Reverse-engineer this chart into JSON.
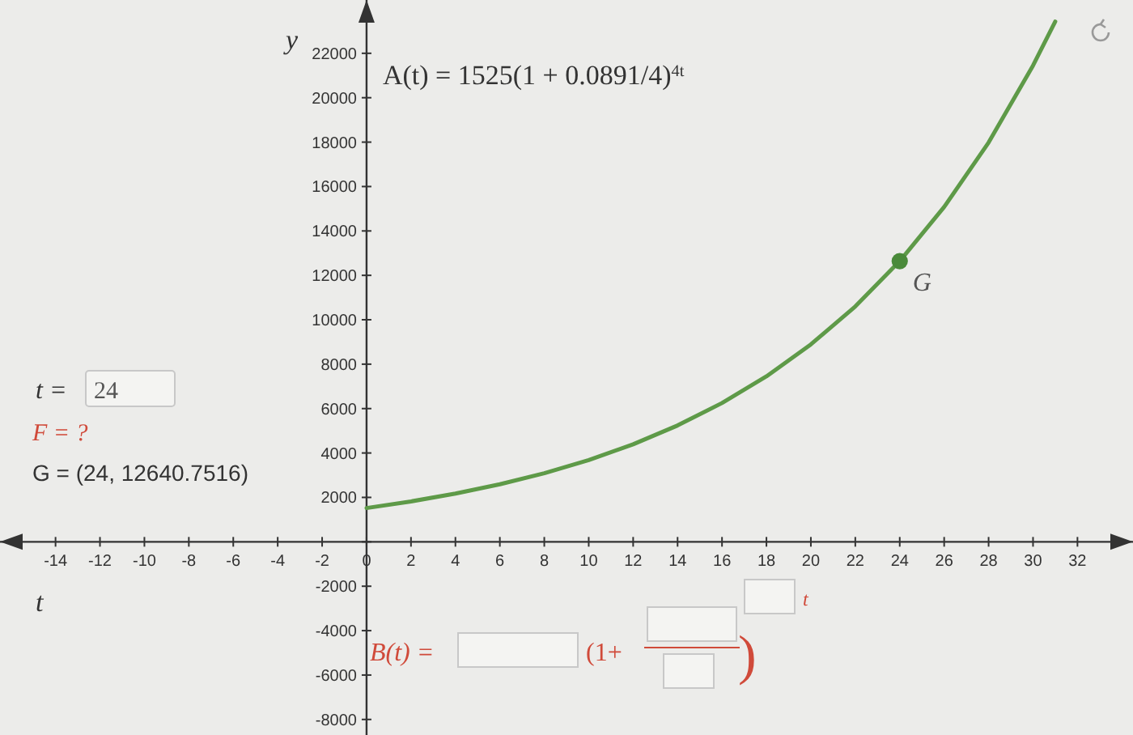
{
  "chart_data": {
    "type": "line",
    "xlabel": "t",
    "ylabel": "y",
    "xlim": [
      -16.5,
      34.5
    ],
    "ylim": [
      -8700,
      24400
    ],
    "xticks": [
      -14,
      -12,
      -10,
      -8,
      -6,
      -4,
      -2,
      0,
      2,
      4,
      6,
      8,
      10,
      12,
      14,
      16,
      18,
      20,
      22,
      24,
      26,
      28,
      30,
      32
    ],
    "yticks": [
      -8000,
      -6000,
      -4000,
      -2000,
      {
        "value": 0,
        "label": null
      },
      2000,
      4000,
      6000,
      8000,
      10000,
      12000,
      14000,
      16000,
      18000,
      20000,
      22000
    ],
    "grid": false,
    "series": [
      {
        "color": "#5e9a48",
        "x": [
          0,
          2,
          4,
          6,
          8,
          10,
          12,
          14,
          16,
          18,
          20,
          22,
          24,
          26,
          28,
          30,
          31
        ],
        "values": [
          1520,
          1820,
          2170,
          2590,
          3090,
          3680,
          4390,
          5240,
          6250,
          7450,
          8890,
          10600,
          12640,
          15080,
          17980,
          21450,
          23430
        ]
      },
      {
        "type": "scatter",
        "name": "G",
        "color": "#4a8a3a",
        "marker": "circle",
        "x": [
          24
        ],
        "values": [
          12640.7516
        ]
      }
    ],
    "annotations": [
      "A(t) = 1525(1 + 0.0891/4)$^{4t}$",
      "t = 24",
      null,
      "F = ?",
      "G = (24, 12640.7516)",
      "B(t) =",
      "(1+",
      ")",
      "t"
    ]
  }
}
